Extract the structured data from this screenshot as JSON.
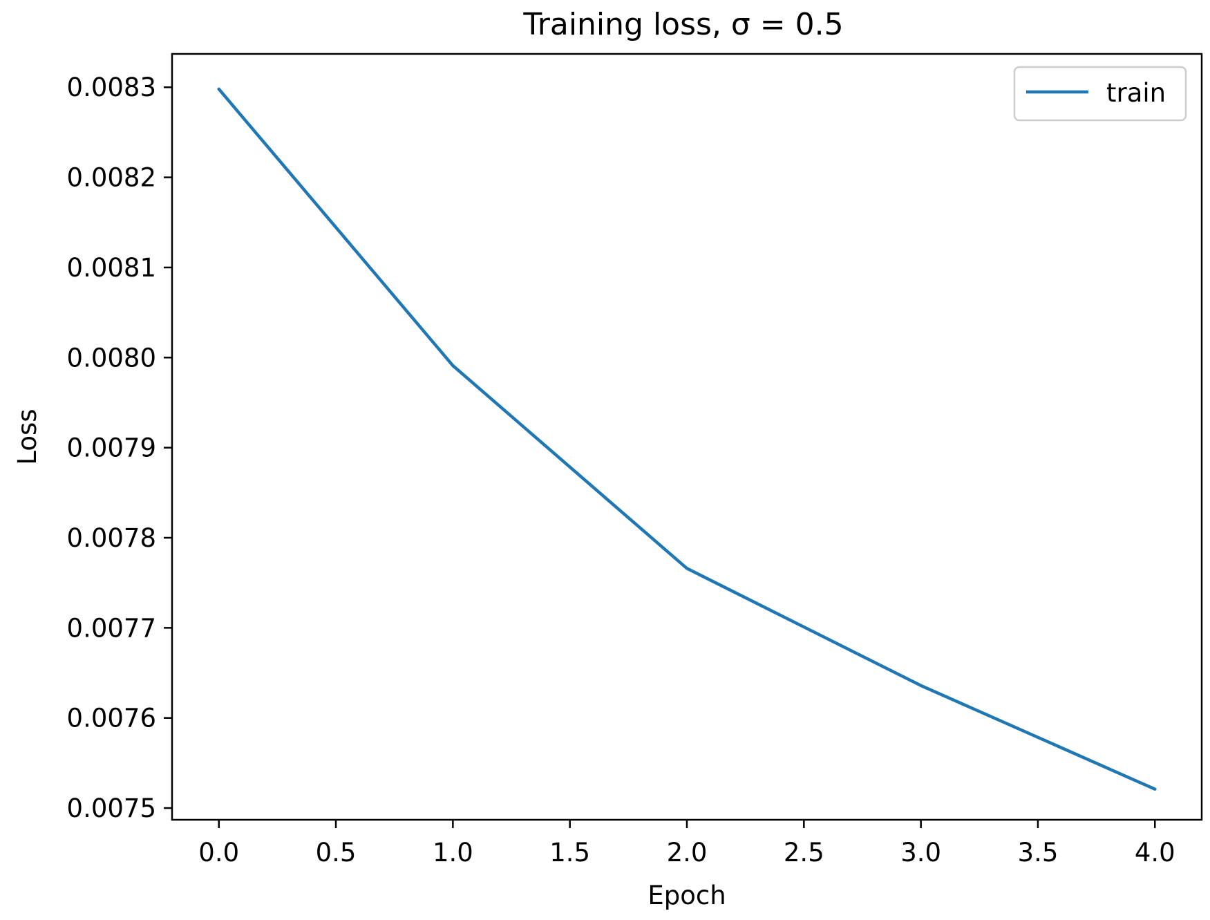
{
  "chart_data": {
    "type": "line",
    "title": "Training loss, σ = 0.5",
    "xlabel": "Epoch",
    "ylabel": "Loss",
    "xlim": [
      -0.2,
      4.2
    ],
    "ylim": [
      0.007487,
      0.008337
    ],
    "xticks": [
      0.0,
      0.5,
      1.0,
      1.5,
      2.0,
      2.5,
      3.0,
      3.5,
      4.0
    ],
    "xtick_labels": [
      "0.0",
      "0.5",
      "1.0",
      "1.5",
      "2.0",
      "2.5",
      "3.0",
      "3.5",
      "4.0"
    ],
    "yticks": [
      0.0075,
      0.0076,
      0.0077,
      0.0078,
      0.0079,
      0.008,
      0.0081,
      0.0082,
      0.0083
    ],
    "ytick_labels": [
      "0.0075",
      "0.0076",
      "0.0077",
      "0.0078",
      "0.0079",
      "0.0080",
      "0.0081",
      "0.0082",
      "0.0083"
    ],
    "grid": false,
    "legend_position": "top-right",
    "series": [
      {
        "name": "train",
        "color": "#1f77b4",
        "x": [
          0,
          1,
          2,
          3,
          4
        ],
        "values": [
          0.008298,
          0.007991,
          0.007766,
          0.007636,
          0.007521
        ]
      }
    ]
  }
}
